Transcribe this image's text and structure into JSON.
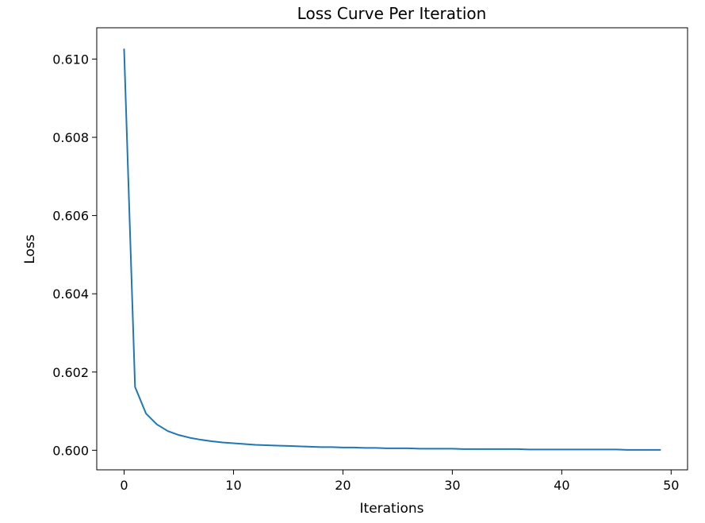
{
  "chart_data": {
    "type": "line",
    "title": "Loss Curve Per Iteration",
    "xlabel": "Iterations",
    "ylabel": "Loss",
    "xlim": [
      -2.5,
      51.5
    ],
    "ylim": [
      0.5995,
      0.6108
    ],
    "xticks": [
      0,
      10,
      20,
      30,
      40,
      50
    ],
    "xtick_labels": [
      "0",
      "10",
      "20",
      "30",
      "40",
      "50"
    ],
    "yticks": [
      0.6,
      0.602,
      0.604,
      0.606,
      0.608,
      0.61
    ],
    "ytick_labels": [
      "0.600",
      "0.602",
      "0.604",
      "0.606",
      "0.608",
      "0.610"
    ],
    "grid": false,
    "legend": "none",
    "series": [
      {
        "color": "#1f77b4",
        "x": [
          0,
          1,
          2,
          3,
          4,
          5,
          6,
          7,
          8,
          9,
          10,
          11,
          12,
          13,
          14,
          15,
          16,
          17,
          18,
          19,
          20,
          21,
          22,
          23,
          24,
          25,
          26,
          27,
          28,
          29,
          30,
          31,
          32,
          33,
          34,
          35,
          36,
          37,
          38,
          39,
          40,
          41,
          42,
          43,
          44,
          45,
          46,
          47,
          48,
          49
        ],
        "y": [
          0.61025,
          0.60162,
          0.60094,
          0.60066,
          0.60049,
          0.60039,
          0.60032,
          0.60027,
          0.60023,
          0.6002,
          0.60018,
          0.60016,
          0.60014,
          0.60013,
          0.60012,
          0.60011,
          0.6001,
          0.60009,
          0.60008,
          0.60008,
          0.60007,
          0.60007,
          0.60006,
          0.60006,
          0.60005,
          0.60005,
          0.60005,
          0.60004,
          0.60004,
          0.60004,
          0.60004,
          0.60003,
          0.60003,
          0.60003,
          0.60003,
          0.60003,
          0.60003,
          0.60002,
          0.60002,
          0.60002,
          0.60002,
          0.60002,
          0.60002,
          0.60002,
          0.60002,
          0.60002,
          0.60001,
          0.60001,
          0.60001,
          0.60001
        ]
      }
    ]
  }
}
